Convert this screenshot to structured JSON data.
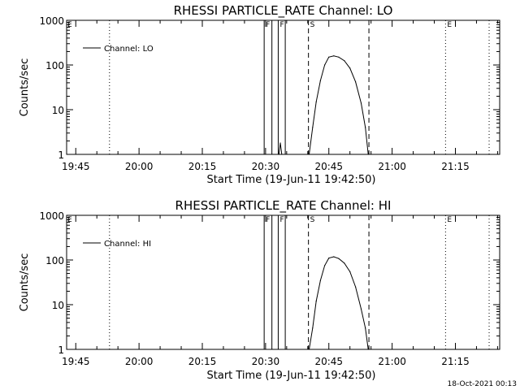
{
  "chart_data": [
    {
      "type": "line",
      "title": "RHESSI PARTICLE_RATE Channel: LO",
      "xlabel": "Start Time (19-Jun-11 19:42:50)",
      "ylabel": "Counts/sec",
      "yscale": "log",
      "ylim": [
        1,
        1000
      ],
      "xlim": [
        "19:42:50",
        "21:25:30"
      ],
      "x_ticks": [
        "19:45",
        "20:00",
        "20:15",
        "20:30",
        "20:45",
        "21:00",
        "21:15"
      ],
      "y_ticks": [
        "1",
        "10",
        "100",
        "1000"
      ],
      "legend": {
        "position": "top-left",
        "entries": [
          "Channel: LO"
        ]
      },
      "series": [
        {
          "name": "Channel: LO",
          "x": [
            "20:33:10",
            "20:33:30",
            "20:33:50",
            "20:40:20",
            "20:41:10",
            "20:42:00",
            "20:43:00",
            "20:44:00",
            "20:45:00",
            "20:46:10",
            "20:47:20",
            "20:48:40",
            "20:50:00",
            "20:51:20",
            "20:52:40",
            "20:53:40",
            "20:54:20"
          ],
          "y": [
            1,
            1.8,
            1,
            1,
            4,
            15,
            45,
            100,
            150,
            160,
            150,
            125,
            85,
            42,
            14,
            4,
            1
          ]
        }
      ],
      "vlines": [
        {
          "time": "19:53:00",
          "style": "dotted",
          "label": ""
        },
        {
          "time": "20:29:40",
          "style": "solid",
          "label": "F"
        },
        {
          "time": "20:31:30",
          "style": "solid",
          "label": ""
        },
        {
          "time": "20:33:00",
          "style": "solid",
          "label": "F"
        },
        {
          "time": "20:34:40",
          "style": "solid",
          "label": ""
        },
        {
          "time": "20:40:10",
          "style": "dashed",
          "label": "S"
        },
        {
          "time": "20:54:30",
          "style": "dashed",
          "label": ""
        },
        {
          "time": "21:12:40",
          "style": "dotted",
          "label": "E"
        },
        {
          "time": "21:23:00",
          "style": "dotted",
          "label": ""
        }
      ],
      "corner_marks": [
        "E"
      ]
    },
    {
      "type": "line",
      "title": "RHESSI PARTICLE_RATE Channel: HI",
      "xlabel": "Start Time (19-Jun-11 19:42:50)",
      "ylabel": "Counts/sec",
      "yscale": "log",
      "ylim": [
        1,
        1000
      ],
      "xlim": [
        "19:42:50",
        "21:25:30"
      ],
      "x_ticks": [
        "19:45",
        "20:00",
        "20:15",
        "20:30",
        "20:45",
        "21:00",
        "21:15"
      ],
      "y_ticks": [
        "1",
        "10",
        "100",
        "1000"
      ],
      "legend": {
        "position": "top-left",
        "entries": [
          "Channel: HI"
        ]
      },
      "series": [
        {
          "name": "Channel: HI",
          "x": [
            "20:40:20",
            "20:41:10",
            "20:42:00",
            "20:43:00",
            "20:44:00",
            "20:45:00",
            "20:46:10",
            "20:47:20",
            "20:48:40",
            "20:50:00",
            "20:51:20",
            "20:52:40",
            "20:53:40",
            "20:54:20"
          ],
          "y": [
            1,
            3,
            12,
            35,
            75,
            110,
            118,
            108,
            85,
            55,
            25,
            8,
            3,
            1
          ]
        }
      ],
      "vlines": [
        {
          "time": "19:53:00",
          "style": "dotted",
          "label": ""
        },
        {
          "time": "20:29:40",
          "style": "solid",
          "label": "F"
        },
        {
          "time": "20:31:30",
          "style": "solid",
          "label": ""
        },
        {
          "time": "20:33:00",
          "style": "solid",
          "label": "F"
        },
        {
          "time": "20:34:40",
          "style": "solid",
          "label": ""
        },
        {
          "time": "20:40:10",
          "style": "dashed",
          "label": "S"
        },
        {
          "time": "20:54:30",
          "style": "dashed",
          "label": ""
        },
        {
          "time": "21:12:40",
          "style": "dotted",
          "label": "E"
        },
        {
          "time": "21:23:00",
          "style": "dotted",
          "label": ""
        }
      ],
      "corner_marks": [
        "E"
      ]
    }
  ],
  "footer": {
    "timestamp": "18-Oct-2021 00:13"
  }
}
